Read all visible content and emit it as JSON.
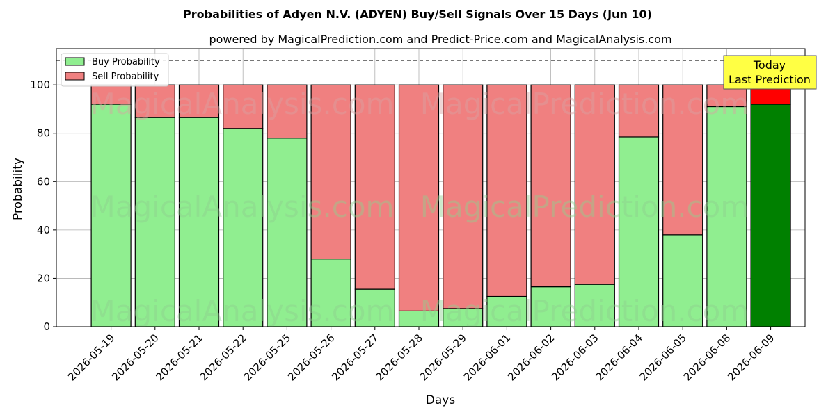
{
  "chart_data": {
    "type": "bar",
    "stacked": true,
    "title": "Probabilities of Adyen N.V. (ADYEN) Buy/Sell Signals Over 15 Days (Jun 10)",
    "subtitle": "powered by MagicalPrediction.com and Predict-Price.com and MagicalAnalysis.com",
    "xlabel": "Days",
    "ylabel": "Probability",
    "ylim": [
      0,
      115
    ],
    "yticks": [
      0,
      20,
      40,
      60,
      80,
      100
    ],
    "reference_line": 110,
    "grid": true,
    "legend_position": "top-left",
    "categories": [
      "2026-05-19",
      "2026-05-20",
      "2026-05-21",
      "2026-05-22",
      "2026-05-25",
      "2026-05-26",
      "2026-05-27",
      "2026-05-28",
      "2026-05-29",
      "2026-06-01",
      "2026-06-02",
      "2026-06-03",
      "2026-06-04",
      "2026-06-05",
      "2026-06-08",
      "2026-06-09"
    ],
    "series": [
      {
        "name": "Buy Probability",
        "color": "#90EE90",
        "highlight_color": "#008000",
        "values": [
          92,
          86.5,
          86.5,
          82,
          78,
          28,
          15.5,
          6.5,
          7.5,
          12.5,
          16.5,
          17.5,
          78.5,
          38,
          91,
          92
        ]
      },
      {
        "name": "Sell Probability",
        "color": "#F08080",
        "highlight_color": "#FF0000",
        "values": [
          8,
          13.5,
          13.5,
          18,
          22,
          72,
          84.5,
          93.5,
          92.5,
          87.5,
          83.5,
          82.5,
          21.5,
          62,
          9,
          8
        ]
      }
    ],
    "highlight_index": 15,
    "annotation": {
      "lines": [
        "Today",
        "Last Prediction"
      ],
      "bg": "#FFFF44"
    }
  },
  "watermarks": [
    "MagicalAnalysis.com",
    "MagicalPrediction.com"
  ]
}
